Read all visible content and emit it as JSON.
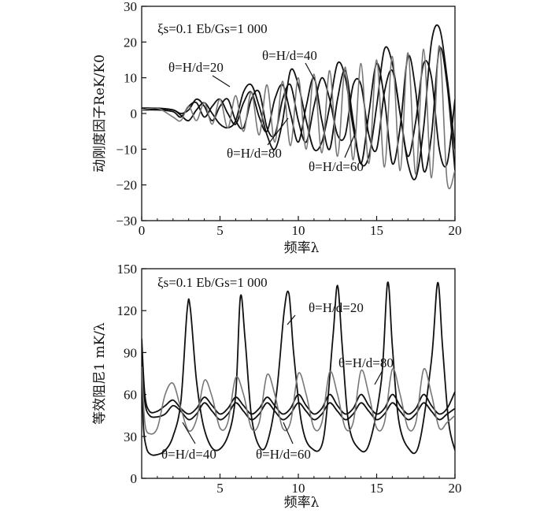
{
  "chart_data": [
    {
      "type": "line",
      "xlabel": "频率λ",
      "ylabel": "动刚度因子ReK/K0",
      "xlim": [
        0,
        20
      ],
      "ylim": [
        -30,
        30
      ],
      "xticks": [
        "0",
        "5",
        "10",
        "15",
        "20"
      ],
      "yticks": [
        "−30",
        "−20",
        "−10",
        "0",
        "10",
        "20",
        "30"
      ],
      "params_text": "ξs=0.1  Eb/Gs=1 000",
      "series": [
        {
          "name": "θ=H/d=20",
          "color": "#111111",
          "x": [
            0,
            1,
            2,
            2.5,
            3,
            3.5,
            4,
            4.5,
            5,
            5.5,
            6,
            6.5,
            7,
            7.5,
            8,
            8.5,
            9,
            9.5,
            10,
            10.5,
            11,
            11.5,
            12,
            12.5,
            13,
            13.5,
            14,
            14.5,
            15,
            15.5,
            16,
            16.5,
            17,
            17.5,
            18,
            18.5,
            19,
            19.5,
            20
          ],
          "y": [
            1,
            1.2,
            1,
            -0.5,
            -2,
            1,
            3,
            0,
            -3,
            -4,
            -2,
            6,
            8,
            2,
            -6,
            -10,
            -2,
            12,
            8,
            -2,
            -10,
            -8,
            2,
            14,
            10,
            -4,
            -14,
            -12,
            2,
            18,
            14,
            0,
            -14,
            -18,
            -4,
            20,
            24,
            10,
            -10
          ]
        },
        {
          "name": "θ=H/d=40",
          "color": "#111111",
          "x": [
            0,
            1,
            2,
            2.5,
            3,
            3.5,
            4,
            4.5,
            5,
            5.5,
            6,
            6.5,
            7,
            7.5,
            8,
            8.5,
            9,
            9.5,
            10,
            10.5,
            11,
            11.5,
            12,
            12.5,
            13,
            13.5,
            14,
            14.5,
            15,
            15.5,
            16,
            16.5,
            17,
            17.5,
            18,
            18.5,
            19,
            19.5,
            20
          ],
          "y": [
            1.5,
            1.5,
            1,
            0,
            1,
            4,
            2,
            -2,
            2,
            4,
            -2,
            -4,
            4,
            6,
            -4,
            -6,
            4,
            8,
            -2,
            -8,
            2,
            10,
            4,
            -6,
            -6,
            8,
            8,
            -6,
            -10,
            6,
            12,
            0,
            -12,
            -2,
            14,
            10,
            -10,
            -14,
            4
          ]
        },
        {
          "name": "θ=H/d=60",
          "color": "#111111",
          "x": [
            0,
            1,
            2,
            2.5,
            3,
            3.5,
            4,
            4.5,
            5,
            5.5,
            6,
            6.5,
            7,
            7.5,
            8,
            8.5,
            9,
            9.5,
            10,
            10.5,
            11,
            11.5,
            12,
            12.5,
            13,
            13.5,
            14,
            14.5,
            15,
            15.5,
            16,
            16.5,
            17,
            17.5,
            18,
            18.5,
            19,
            19.5,
            20
          ],
          "y": [
            1,
            1,
            0.5,
            -1,
            2,
            3,
            -1,
            2,
            4,
            0,
            -3,
            3,
            6,
            -1,
            -5,
            4,
            8,
            0,
            -8,
            2,
            10,
            -2,
            -10,
            4,
            12,
            -2,
            -14,
            0,
            14,
            4,
            -14,
            -4,
            16,
            6,
            -16,
            -6,
            18,
            8,
            -16
          ]
        },
        {
          "name": "θ=H/d=80",
          "color": "#777777",
          "x": [
            0,
            1,
            2,
            2.5,
            3,
            3.5,
            4,
            4.5,
            5,
            5.5,
            6,
            6.5,
            7,
            7.5,
            8,
            8.5,
            9,
            9.5,
            10,
            10.5,
            11,
            11.5,
            12,
            12.5,
            13,
            13.5,
            14,
            14.5,
            15,
            15.5,
            16,
            16.5,
            17,
            17.5,
            18,
            18.5,
            19,
            19.5,
            20
          ],
          "y": [
            1,
            1.5,
            -1,
            -2,
            2,
            -2,
            3,
            -3,
            4,
            -4,
            5,
            -5,
            6,
            -6,
            8,
            -8,
            9,
            -9,
            10,
            -10,
            11,
            -11,
            12,
            -12,
            13,
            -13,
            14,
            -14,
            15,
            -15,
            16,
            -16,
            17,
            -17,
            18,
            -18,
            19,
            -19,
            -16
          ]
        }
      ],
      "annotations": [
        "θ=H/d=20",
        "θ=H/d=40",
        "θ=H/d=80",
        "θ=H/d=60"
      ]
    },
    {
      "type": "line",
      "xlabel": "频率λ",
      "ylabel": "等效阻尼1 mK/λ",
      "xlim": [
        0,
        20
      ],
      "ylim": [
        0,
        150
      ],
      "xticks": [
        "5",
        "10",
        "15",
        "20"
      ],
      "yticks": [
        "0",
        "30",
        "60",
        "90",
        "120",
        "150"
      ],
      "params_text": "ξs=0.1  Eb/Gs=1 000",
      "series": [
        {
          "name": "θ=H/d=20",
          "color": "#111111",
          "x": [
            0,
            0.1,
            0.3,
            0.6,
            1.0,
            1.5,
            2.0,
            2.5,
            2.9,
            3.1,
            3.5,
            4.0,
            4.7,
            5.5,
            6.0,
            6.3,
            6.6,
            7.0,
            7.5,
            8.0,
            8.6,
            9.1,
            9.4,
            9.7,
            10.2,
            10.8,
            11.6,
            12.2,
            12.5,
            12.8,
            13.2,
            13.8,
            14.5,
            15.3,
            15.7,
            16.0,
            16.4,
            17.0,
            17.7,
            18.5,
            18.9,
            19.2,
            19.6,
            20.0
          ],
          "y": [
            92,
            40,
            22,
            17,
            17,
            20,
            30,
            55,
            120,
            122,
            70,
            35,
            20,
            30,
            60,
            130,
            100,
            45,
            23,
            25,
            60,
            120,
            132,
            90,
            40,
            22,
            28,
            100,
            138,
            95,
            40,
            22,
            24,
            70,
            140,
            95,
            42,
            22,
            24,
            85,
            140,
            95,
            40,
            20
          ]
        },
        {
          "name": "θ=H/d=40",
          "color": "#111111",
          "x": [
            0,
            0.2,
            0.5,
            1,
            1.5,
            2,
            2.5,
            3,
            3.5,
            4,
            4.5,
            5,
            5.5,
            6,
            6.5,
            7,
            7.5,
            8,
            8.5,
            9,
            9.5,
            10,
            10.5,
            11,
            11.5,
            12,
            12.5,
            13,
            13.5,
            14,
            14.5,
            15,
            15.5,
            16,
            16.5,
            17,
            17.5,
            18,
            18.5,
            19,
            19.5,
            20
          ],
          "y": [
            100,
            60,
            48,
            48,
            52,
            56,
            50,
            46,
            50,
            58,
            52,
            46,
            50,
            58,
            52,
            46,
            50,
            58,
            52,
            46,
            50,
            60,
            52,
            46,
            50,
            60,
            52,
            46,
            50,
            60,
            52,
            46,
            50,
            60,
            52,
            46,
            50,
            60,
            52,
            46,
            50,
            62
          ]
        },
        {
          "name": "θ=H/d=60",
          "color": "#111111",
          "x": [
            0,
            0.2,
            0.5,
            1,
            1.5,
            2,
            2.5,
            3,
            3.5,
            4,
            4.5,
            5,
            5.5,
            6,
            6.5,
            7,
            7.5,
            8,
            8.5,
            9,
            9.5,
            10,
            10.5,
            11,
            11.5,
            12,
            12.5,
            13,
            13.5,
            14,
            14.5,
            15,
            15.5,
            16,
            16.5,
            17,
            17.5,
            18,
            18.5,
            19,
            19.5,
            20
          ],
          "y": [
            90,
            55,
            45,
            44,
            46,
            52,
            48,
            42,
            46,
            54,
            48,
            42,
            46,
            54,
            48,
            42,
            46,
            54,
            48,
            42,
            46,
            54,
            48,
            42,
            46,
            54,
            48,
            42,
            46,
            54,
            48,
            42,
            46,
            54,
            48,
            42,
            46,
            54,
            48,
            42,
            46,
            50
          ]
        },
        {
          "name": "θ=H/d=80",
          "color": "#777777",
          "x": [
            0,
            0.2,
            0.5,
            1,
            1.5,
            2,
            2.5,
            3,
            3.5,
            4,
            4.5,
            5,
            5.5,
            6,
            6.5,
            7,
            7.5,
            8,
            8.5,
            9,
            9.5,
            10,
            10.5,
            11,
            11.5,
            12,
            12.5,
            13,
            13.5,
            14,
            14.5,
            15,
            15.5,
            16,
            16.5,
            17,
            17.5,
            18,
            18.5,
            19,
            19.5,
            20
          ],
          "y": [
            80,
            40,
            32,
            36,
            60,
            68,
            50,
            34,
            42,
            70,
            58,
            36,
            40,
            72,
            60,
            36,
            40,
            74,
            60,
            36,
            40,
            75,
            60,
            36,
            40,
            76,
            60,
            36,
            40,
            77,
            60,
            36,
            40,
            78,
            60,
            36,
            40,
            78,
            60,
            36,
            40,
            45
          ]
        }
      ],
      "annotations": [
        "θ=H/d=20",
        "θ=H/d=80",
        "θ=H/d=40",
        "θ=H/d=60"
      ]
    }
  ]
}
